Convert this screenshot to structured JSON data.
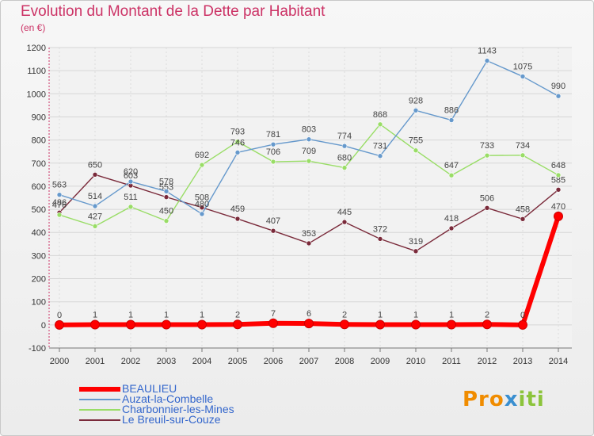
{
  "chart_data": {
    "type": "line",
    "title": "Evolution du Montant de la Dette par Habitant",
    "subtitle": "(en €)",
    "xlabel": "",
    "ylabel": "",
    "x": [
      "2000",
      "2001",
      "2002",
      "2003",
      "2004",
      "2005",
      "2006",
      "2007",
      "2008",
      "2009",
      "2010",
      "2011",
      "2012",
      "2013",
      "2014"
    ],
    "ylim": [
      -100,
      1200
    ],
    "yticks": [
      -100,
      0,
      100,
      200,
      300,
      400,
      500,
      600,
      700,
      800,
      900,
      1000,
      1100,
      1200
    ],
    "ytick_labels": [
      "-100",
      "0",
      "100",
      "200",
      "300",
      "400",
      "500",
      "600",
      "700",
      "800",
      "900",
      "1000",
      "1100",
      "1200"
    ],
    "grid": true,
    "legend_position": "bottom-left",
    "series": [
      {
        "name": "Le Breuil-sur-Couze",
        "color": "#7a2a3a",
        "values": [
          486,
          650,
          603,
          553,
          508,
          459,
          407,
          353,
          445,
          372,
          319,
          418,
          506,
          458,
          585
        ],
        "labels": [
          "486",
          "650",
          "603",
          "553",
          "508",
          "459",
          "407",
          "353",
          "445",
          "372",
          "319",
          "418",
          "506",
          "458",
          "585"
        ]
      },
      {
        "name": "Charbonnier-les-Mines",
        "color": "#99dd66",
        "values": [
          476,
          427,
          511,
          450,
          692,
          793,
          706,
          709,
          680,
          868,
          755,
          647,
          733,
          734,
          648
        ],
        "labels": [
          "476",
          "427",
          "511",
          "450",
          "692",
          "793",
          "706",
          "709",
          "680",
          "868",
          "755",
          "647",
          "733",
          "734",
          "648"
        ]
      },
      {
        "name": "Auzat-la-Combelle",
        "color": "#6699cc",
        "values": [
          563,
          514,
          620,
          578,
          480,
          746,
          781,
          803,
          774,
          731,
          928,
          886,
          1143,
          1075,
          990
        ],
        "labels": [
          "563",
          "514",
          "620",
          "578",
          "480",
          "746",
          "781",
          "803",
          "774",
          "731",
          "928",
          "886",
          "1143",
          "1075",
          "990"
        ]
      },
      {
        "name": "BEAULIEU",
        "color": "#ff0000",
        "values": [
          0,
          1,
          1,
          1,
          1,
          2,
          7,
          6,
          2,
          1,
          1,
          1,
          2,
          0,
          470
        ],
        "labels": [
          "0",
          "1",
          "1",
          "1",
          "1",
          "2",
          "7",
          "6",
          "2",
          "1",
          "1",
          "1",
          "2",
          "0",
          "470"
        ]
      }
    ],
    "legend": [
      {
        "name": "BEAULIEU",
        "color": "#ff0000"
      },
      {
        "name": "Auzat-la-Combelle",
        "color": "#6699cc"
      },
      {
        "name": "Charbonnier-les-Mines",
        "color": "#99dd66"
      },
      {
        "name": "Le Breuil-sur-Couze",
        "color": "#7a2a3a"
      }
    ]
  },
  "brand": {
    "logo_text": "Proxiti"
  }
}
